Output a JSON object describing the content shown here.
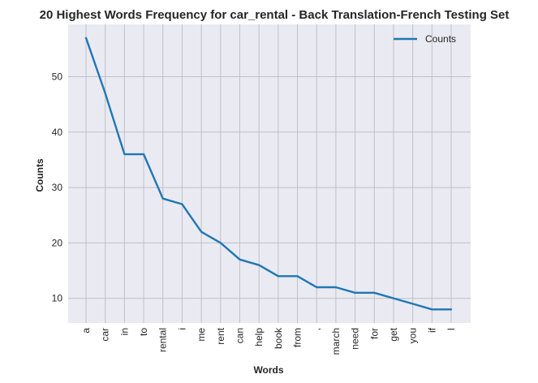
{
  "chart_data": {
    "type": "line",
    "title": "20 Highest Words Frequency for car_rental - Back Translation-French Testing Set",
    "xlabel": "Words",
    "ylabel": "Counts",
    "categories": [
      "a",
      "car",
      "in",
      "to",
      "rental",
      "i",
      "me",
      "rent",
      "can",
      "help",
      "book",
      "from",
      ",",
      "march",
      "need",
      "for",
      "get",
      "you",
      "if",
      "I"
    ],
    "series": [
      {
        "name": "Counts",
        "color": "#1f77b4",
        "values": [
          57,
          47,
          36,
          36,
          28,
          27,
          22,
          20,
          17,
          16,
          14,
          14,
          12,
          12,
          11,
          11,
          10,
          9,
          8,
          8
        ]
      }
    ],
    "yticks": [
      10,
      20,
      30,
      40,
      50
    ],
    "ylim": [
      5.55,
      59.45
    ],
    "grid": true,
    "legend_position": "top-right",
    "colors": {
      "background": "#eaeaf2",
      "grid": "#c0c0c8"
    }
  }
}
